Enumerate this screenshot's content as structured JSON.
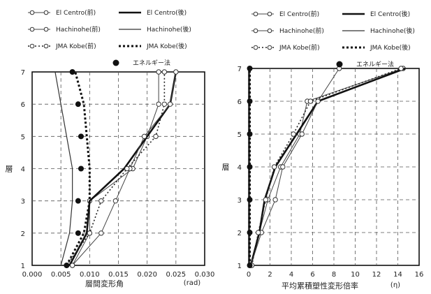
{
  "chart_data": [
    {
      "type": "line",
      "xlabel": "層間変形角",
      "xunit": "(rad)",
      "ylabel": "層",
      "xlim": [
        0,
        0.03
      ],
      "ylim": [
        1,
        7
      ],
      "xticks": [
        "0.000",
        "0.005",
        "0.010",
        "0.015",
        "0.020",
        "0.025",
        "0.030"
      ],
      "yticks": [
        "1",
        "2",
        "3",
        "4",
        "5",
        "6",
        "7"
      ],
      "grid": true,
      "legend_position": "top",
      "legend": [
        "El Centro(前)",
        "El Centro(後)",
        "Hachinohe(前)",
        "Hachinohe(後)",
        "JMA Kobe(前)",
        "JMA Kobe(後)",
        "エネルギー法"
      ],
      "series": [
        {
          "name": "El Centro(前)",
          "style": "thin-open",
          "x": [
            0.007,
            0.01,
            0.01,
            0.0175,
            0.02,
            0.022,
            0.022
          ],
          "y": [
            1,
            2,
            3,
            4,
            5,
            6,
            7
          ]
        },
        {
          "name": "El Centro(後)",
          "style": "thick-solid",
          "x": [
            0.0065,
            0.0095,
            0.01,
            0.016,
            0.02,
            0.024,
            0.025
          ],
          "y": [
            1,
            2,
            3,
            4,
            5,
            6,
            7
          ]
        },
        {
          "name": "Hachinohe(前)",
          "style": "thin-open",
          "x": [
            0.007,
            0.012,
            0.0145,
            0.017,
            0.0195,
            0.024,
            0.025
          ],
          "y": [
            1,
            2,
            3,
            4,
            5,
            6,
            7
          ]
        },
        {
          "name": "Hachinohe(後)",
          "style": "thin-solid",
          "x": [
            0.005,
            0.0065,
            0.007,
            0.007,
            0.006,
            0.005,
            0.004
          ],
          "y": [
            1,
            2,
            3,
            4,
            5,
            6,
            7
          ]
        },
        {
          "name": "JMA Kobe(前)",
          "style": "dotted-open",
          "x": [
            0.006,
            0.01,
            0.012,
            0.0165,
            0.0215,
            0.023,
            0.023
          ],
          "y": [
            1,
            2,
            3,
            4,
            5,
            6,
            7
          ]
        },
        {
          "name": "JMA Kobe(後)",
          "style": "dotted-thick",
          "x": [
            0.006,
            0.009,
            0.01,
            0.01,
            0.0095,
            0.009,
            0.0075
          ],
          "y": [
            1,
            2,
            3,
            4,
            5,
            6,
            7
          ]
        },
        {
          "name": "エネルギー法",
          "style": "filled",
          "x": [
            0.006,
            0.008,
            0.008,
            0.0085,
            0.0085,
            0.008,
            0.007
          ],
          "y": [
            1,
            2,
            3,
            4,
            5,
            6,
            7
          ]
        }
      ]
    },
    {
      "type": "line",
      "xlabel": "平均累積塑性変形倍率",
      "xunit": "(η)",
      "ylabel": "層",
      "xlim": [
        0,
        16
      ],
      "ylim": [
        1,
        7
      ],
      "xticks": [
        "0",
        "2",
        "4",
        "6",
        "8",
        "10",
        "12",
        "14",
        "16"
      ],
      "yticks": [
        "1",
        "2",
        "3",
        "4",
        "5",
        "6",
        "7"
      ],
      "grid": true,
      "legend_position": "top",
      "legend": [
        "El Centro(前)",
        "El Centro(後)",
        "Hachinohe(前)",
        "Hachinohe(後)",
        "JMA Kobe(前)",
        "JMA Kobe(後)",
        "エネルギー法"
      ],
      "series": [
        {
          "name": "El Centro(前)",
          "style": "thin-open",
          "x": [
            0.2,
            1.0,
            1.8,
            3.0,
            4.8,
            5.5,
            14.5
          ],
          "y": [
            1,
            2,
            3,
            4,
            5,
            6,
            7
          ]
        },
        {
          "name": "El Centro(後)",
          "style": "thick-solid",
          "x": [
            0.2,
            1.0,
            1.5,
            2.5,
            4.5,
            6.5,
            14.7
          ],
          "y": [
            1,
            2,
            3,
            4,
            5,
            6,
            7
          ]
        },
        {
          "name": "Hachinohe(前)",
          "style": "thin-open",
          "x": [
            0.2,
            1.2,
            2.5,
            3.2,
            5.0,
            6.5,
            8.5
          ],
          "y": [
            1,
            2,
            3,
            4,
            5,
            6,
            7
          ]
        },
        {
          "name": "Hachinohe(後)",
          "style": "thin-solid",
          "x": [
            0.1,
            0.1,
            0.1,
            0.1,
            0.1,
            0.1,
            0.1
          ],
          "y": [
            1,
            2,
            3,
            4,
            5,
            6,
            7
          ]
        },
        {
          "name": "JMA Kobe(前)",
          "style": "dotted-open",
          "x": [
            0.3,
            0.9,
            1.6,
            2.4,
            4.2,
            5.8,
            14.3
          ],
          "y": [
            1,
            2,
            3,
            4,
            5,
            6,
            7
          ]
        },
        {
          "name": "JMA Kobe(後)",
          "style": "dotted-thick",
          "x": [
            0.1,
            0.1,
            0.1,
            0.1,
            0.1,
            0.1,
            0.1
          ],
          "y": [
            1,
            2,
            3,
            4,
            5,
            6,
            7
          ]
        },
        {
          "name": "エネルギー法",
          "style": "filled",
          "x": [
            0.1,
            0.1,
            0.1,
            0.1,
            0.1,
            0.1,
            0.1
          ],
          "y": [
            1,
            2,
            3,
            4,
            5,
            6,
            7
          ]
        }
      ]
    }
  ]
}
